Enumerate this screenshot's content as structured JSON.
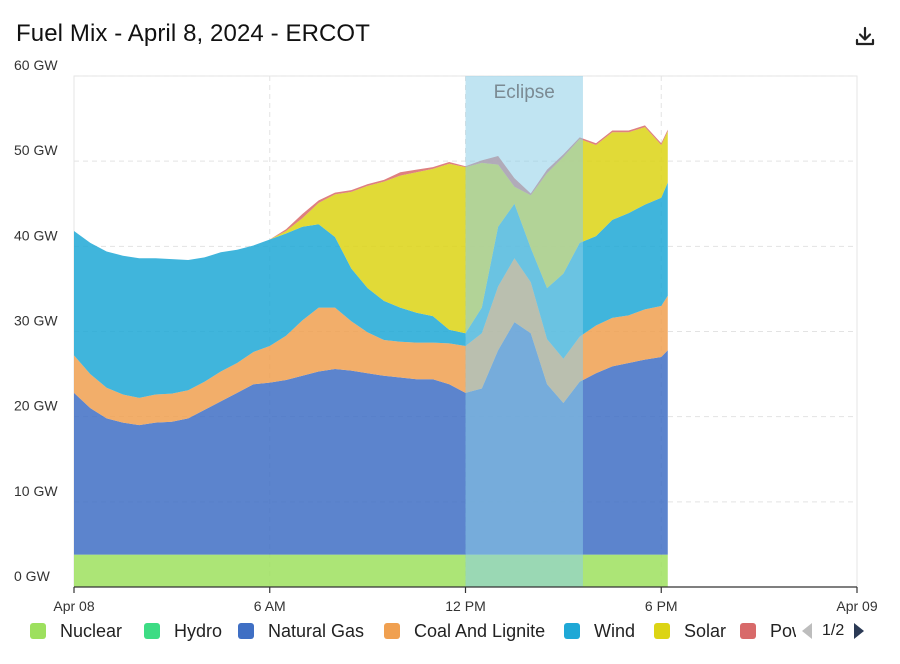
{
  "title": "Fuel Mix - April 8, 2024 - ERCOT",
  "icons": {
    "download": "download-icon",
    "prev": "prev-page-icon",
    "next": "next-page-icon"
  },
  "legend_pager": {
    "text": "1/2"
  },
  "colors": {
    "nuclear": "#9de05e",
    "hydro": "#3ddc84",
    "natural_gas": "#3f6fc4",
    "coal_and_lignite": "#f0a050",
    "wind": "#1fa8d6",
    "solar": "#dcd414",
    "power_storage": "#d86a6a",
    "eclipse_band": "#8ccde8"
  },
  "chart_data": {
    "type": "area",
    "title": "Fuel Mix - April 8, 2024 - ERCOT",
    "stacked": true,
    "x_unit": "hours",
    "x_ticks": [
      {
        "value": 0,
        "label": "Apr 08"
      },
      {
        "value": 6,
        "label": "6 AM"
      },
      {
        "value": 12,
        "label": "12 PM"
      },
      {
        "value": 18,
        "label": "6 PM"
      },
      {
        "value": 24,
        "label": "Apr 09"
      }
    ],
    "xlim": [
      0,
      24
    ],
    "y_ticks": [
      {
        "value": 0,
        "label": "0 GW"
      },
      {
        "value": 10,
        "label": "10 GW"
      },
      {
        "value": 20,
        "label": "20 GW"
      },
      {
        "value": 30,
        "label": "30 GW"
      },
      {
        "value": 40,
        "label": "40 GW"
      },
      {
        "value": 50,
        "label": "50 GW"
      },
      {
        "value": 60,
        "label": "60 GW"
      }
    ],
    "ylim": [
      0,
      60
    ],
    "grid": true,
    "legend_position": "bottom",
    "annotation": {
      "label": "Eclipse",
      "x_start": 12.0,
      "x_end": 15.6
    },
    "x": [
      0,
      0.5,
      1,
      1.5,
      2,
      2.5,
      3,
      3.5,
      4,
      4.5,
      5,
      5.5,
      6,
      6.5,
      7,
      7.5,
      8,
      8.5,
      9,
      9.5,
      10,
      10.5,
      11,
      11.5,
      12,
      12.5,
      13,
      13.5,
      14,
      14.5,
      15,
      15.5,
      16,
      16.5,
      17,
      17.5,
      18,
      18.2
    ],
    "series": [
      {
        "name": "Nuclear",
        "color_key": "nuclear",
        "values": [
          3.8,
          3.8,
          3.8,
          3.8,
          3.8,
          3.8,
          3.8,
          3.8,
          3.8,
          3.8,
          3.8,
          3.8,
          3.8,
          3.8,
          3.8,
          3.8,
          3.8,
          3.8,
          3.8,
          3.8,
          3.8,
          3.8,
          3.8,
          3.8,
          3.8,
          3.8,
          3.8,
          3.8,
          3.8,
          3.8,
          3.8,
          3.8,
          3.8,
          3.8,
          3.8,
          3.8,
          3.8,
          3.8
        ]
      },
      {
        "name": "Hydro",
        "color_key": "hydro",
        "values": [
          0,
          0,
          0,
          0,
          0,
          0,
          0,
          0,
          0,
          0,
          0,
          0,
          0,
          0,
          0,
          0,
          0,
          0,
          0,
          0,
          0,
          0,
          0,
          0,
          0,
          0,
          0,
          0,
          0,
          0,
          0,
          0,
          0,
          0,
          0,
          0,
          0,
          0
        ]
      },
      {
        "name": "Natural Gas",
        "color_key": "natural_gas",
        "values": [
          19.0,
          17.2,
          16.0,
          15.5,
          15.2,
          15.5,
          15.6,
          16.0,
          17.0,
          18.0,
          19.0,
          20.0,
          20.2,
          20.5,
          21.0,
          21.5,
          21.8,
          21.6,
          21.3,
          21.0,
          20.8,
          20.6,
          20.6,
          20.0,
          19.0,
          19.5,
          24.0,
          27.3,
          26.0,
          20.0,
          17.8,
          20.3,
          21.3,
          22.1,
          22.5,
          22.9,
          23.2,
          24.0
        ]
      },
      {
        "name": "Coal And Lignite",
        "color_key": "coal_and_lignite",
        "values": [
          4.4,
          4.0,
          3.6,
          3.3,
          3.2,
          3.3,
          3.3,
          3.3,
          3.3,
          3.5,
          3.5,
          3.8,
          4.3,
          5.2,
          6.5,
          7.5,
          7.2,
          5.8,
          4.8,
          4.2,
          4.2,
          4.3,
          4.3,
          4.8,
          5.5,
          6.5,
          7.5,
          7.5,
          6.0,
          5.3,
          5.2,
          5.3,
          5.6,
          5.7,
          5.6,
          5.9,
          6.0,
          6.4
        ]
      },
      {
        "name": "Wind",
        "color_key": "wind",
        "values": [
          14.6,
          15.4,
          16.0,
          16.3,
          16.4,
          16.0,
          15.8,
          15.3,
          14.6,
          14.0,
          13.3,
          12.5,
          12.5,
          12.0,
          11.0,
          9.8,
          8.3,
          6.2,
          5.2,
          4.6,
          4.0,
          3.5,
          3.1,
          1.6,
          1.5,
          3.0,
          7.0,
          6.4,
          4.0,
          6.0,
          10.0,
          11.0,
          10.5,
          11.5,
          12.0,
          12.3,
          12.7,
          13.3
        ]
      },
      {
        "name": "Solar",
        "color_key": "solar",
        "values": [
          0,
          0,
          0,
          0,
          0,
          0,
          0,
          0,
          0,
          0,
          0,
          0,
          0,
          0.3,
          1.0,
          2.5,
          5.0,
          9.0,
          12.0,
          14.0,
          15.5,
          16.5,
          17.3,
          19.5,
          19.5,
          17.0,
          7.3,
          2.0,
          6.2,
          13.5,
          13.7,
          12.2,
          10.7,
          10.3,
          9.5,
          9.1,
          6.2,
          6.0
        ]
      },
      {
        "name": "Power Storage",
        "color_key": "power_storage",
        "values": [
          0,
          0,
          0,
          0,
          0,
          0,
          0,
          0,
          0,
          0,
          0,
          0,
          0,
          0.2,
          0.5,
          0.3,
          0.2,
          0.2,
          0.2,
          0.2,
          0.4,
          0.3,
          0.2,
          0.2,
          0.1,
          0.3,
          1.0,
          1.0,
          0.2,
          0.4,
          0.3,
          0.2,
          0.2,
          0.2,
          0.2,
          0.2,
          0.2,
          0.2
        ]
      }
    ]
  },
  "legend": {
    "items": [
      {
        "label": "Nuclear",
        "color_key": "nuclear"
      },
      {
        "label": "Hydro",
        "color_key": "hydro"
      },
      {
        "label": "Natural Gas",
        "color_key": "natural_gas"
      },
      {
        "label": "Coal And Lignite",
        "color_key": "coal_and_lignite"
      },
      {
        "label": "Wind",
        "color_key": "wind"
      },
      {
        "label": "Solar",
        "color_key": "solar"
      },
      {
        "label": "Power Storage",
        "color_key": "power_storage"
      }
    ]
  }
}
